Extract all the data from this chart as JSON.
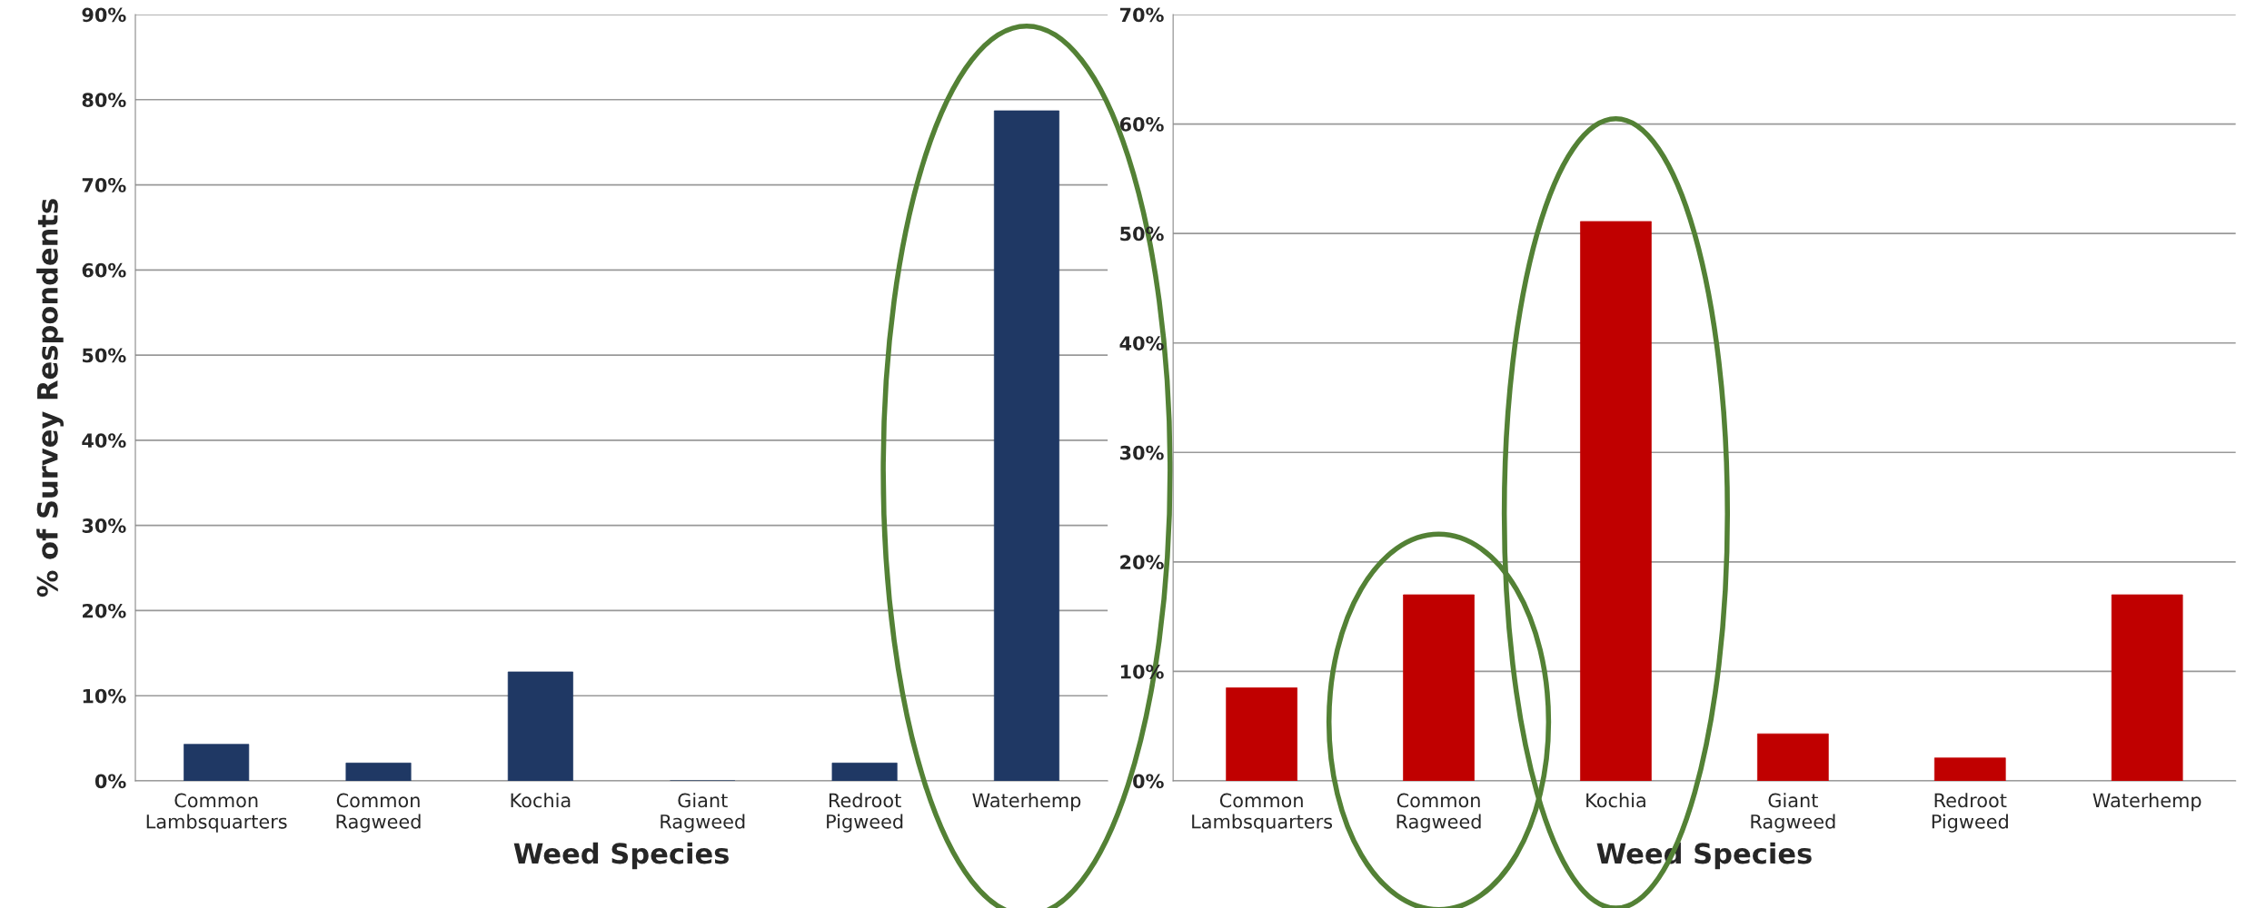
{
  "chart_data": [
    {
      "type": "bar",
      "categories": [
        "Common\nLambsquarters",
        "Common\nRagweed",
        "Kochia",
        "Giant\nRagweed",
        "Redroot\nPigweed",
        "Waterhemp"
      ],
      "values": [
        4.3,
        2.1,
        12.8,
        0,
        2.1,
        78.7
      ],
      "color": "#1f3864",
      "xlabel": "Weed Species",
      "ylabel": "% of Survey Respondents",
      "ylim": [
        0,
        90
      ],
      "yticks": [
        {
          "value": 0,
          "label": "0%"
        },
        {
          "value": 10,
          "label": "10%"
        },
        {
          "value": 20,
          "label": "20%"
        },
        {
          "value": 30,
          "label": "30%"
        },
        {
          "value": 40,
          "label": "40%"
        },
        {
          "value": 50,
          "label": "50%"
        },
        {
          "value": 60,
          "label": "60%"
        },
        {
          "value": 70,
          "label": "70%"
        },
        {
          "value": 80,
          "label": "80%"
        },
        {
          "value": 90,
          "label": "90%"
        }
      ],
      "grid": "y"
    },
    {
      "type": "bar",
      "categories": [
        "Common\nLambsquarters",
        "Common\nRagweed",
        "Kochia",
        "Giant\nRagweed",
        "Redroot\nPigweed",
        "Waterhemp"
      ],
      "values": [
        8.5,
        17.0,
        51.1,
        4.3,
        2.1,
        17.0
      ],
      "color": "#c00000",
      "xlabel": "Weed Species",
      "ylim": [
        0,
        70
      ],
      "yticks": [
        {
          "value": 0,
          "label": "0%"
        },
        {
          "value": 10,
          "label": "10%"
        },
        {
          "value": 20,
          "label": "20%"
        },
        {
          "value": 30,
          "label": "30%"
        },
        {
          "value": 40,
          "label": "40%"
        },
        {
          "value": 50,
          "label": "50%"
        },
        {
          "value": 60,
          "label": "60%"
        },
        {
          "value": 70,
          "label": "70%"
        }
      ],
      "grid": "y"
    }
  ]
}
